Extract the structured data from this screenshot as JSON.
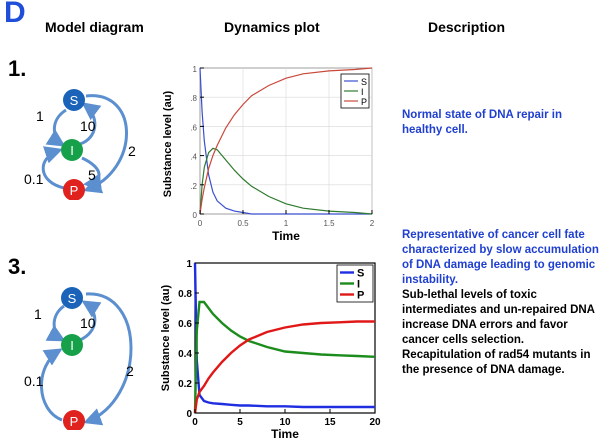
{
  "panel_letter": "D",
  "headers": {
    "model": "Model diagram",
    "dynamics": "Dynamics plot",
    "description": "Description"
  },
  "rows": [
    {
      "number": "1.",
      "diagram": {
        "nodes": [
          "S",
          "I",
          "P"
        ],
        "edge_labels": {
          "s_i": "1",
          "i_s": "10",
          "s_p": "2",
          "i_p": "5",
          "p_i": "0.1"
        }
      },
      "description_blue": "Normal state of DNA repair in healthy cell.",
      "description_black": ""
    },
    {
      "number": "3.",
      "diagram": {
        "nodes": [
          "S",
          "I",
          "P"
        ],
        "edge_labels": {
          "s_i": "1",
          "i_s": "10",
          "s_p": "2",
          "p_i": "0.1"
        }
      },
      "description_blue": "Representative of cancer cell fate characterized by slow accumulation of DNA damage leading to genomic instability.",
      "description_black": "Sub-lethal levels of toxic intermediates and un-repaired DNA increase DNA errors and favor cancer cells selection. Recapitulation of rad54 mutants in the presence of DNA damage."
    }
  ],
  "colors": {
    "S": "#1a63b8",
    "I": "#17a04a",
    "P": "#e0221f",
    "arrow": "#5b8fcf",
    "heading_blue": "#1f4fd8"
  },
  "chart_data": [
    {
      "type": "line",
      "xlabel": "Time",
      "ylabel": "Substance level (au)",
      "xlim": [
        0,
        2
      ],
      "ylim": [
        0,
        1
      ],
      "xticks": [
        "0",
        "0.5",
        "1",
        "1.5",
        "2"
      ],
      "yticks": [
        "0",
        ".2",
        ".4",
        ".6",
        ".8",
        "1"
      ],
      "x": [
        0,
        0.025,
        0.05,
        0.1,
        0.15,
        0.2,
        0.3,
        0.4,
        0.5,
        0.6,
        0.8,
        1.0,
        1.2,
        1.5,
        1.8,
        2.0
      ],
      "series": [
        {
          "name": "S",
          "color": "#3a4fcf",
          "values": [
            1.0,
            0.7,
            0.5,
            0.27,
            0.15,
            0.09,
            0.04,
            0.02,
            0.01,
            0.0,
            0.0,
            0.0,
            0.0,
            0.0,
            0.0,
            0.0
          ]
        },
        {
          "name": "I",
          "color": "#2e7a2e",
          "values": [
            0.0,
            0.2,
            0.32,
            0.42,
            0.45,
            0.44,
            0.37,
            0.3,
            0.24,
            0.19,
            0.12,
            0.07,
            0.04,
            0.02,
            0.01,
            0.0
          ]
        },
        {
          "name": "P",
          "color": "#c9483a",
          "values": [
            0.0,
            0.1,
            0.18,
            0.31,
            0.4,
            0.47,
            0.59,
            0.68,
            0.75,
            0.81,
            0.88,
            0.93,
            0.96,
            0.98,
            0.99,
            1.0
          ]
        }
      ],
      "legend": "top-right"
    },
    {
      "type": "line",
      "xlabel": "Time",
      "ylabel": "Substance level (au)",
      "xlim": [
        0,
        20
      ],
      "ylim": [
        0,
        1
      ],
      "xticks": [
        "0",
        "5",
        "10",
        "15",
        "20"
      ],
      "yticks": [
        "0",
        "0.2",
        "0.4",
        "0.6",
        "0.8",
        "1"
      ],
      "x": [
        0,
        0.2,
        0.5,
        1,
        1.5,
        2,
        3,
        4,
        5,
        6,
        8,
        10,
        12,
        14,
        16,
        18,
        20
      ],
      "series": [
        {
          "name": "S",
          "color": "#1f2ee0",
          "values": [
            1.0,
            0.35,
            0.12,
            0.08,
            0.07,
            0.065,
            0.06,
            0.055,
            0.05,
            0.05,
            0.045,
            0.045,
            0.04,
            0.04,
            0.04,
            0.04,
            0.04
          ]
        },
        {
          "name": "I",
          "color": "#1c8c1c",
          "values": [
            0.0,
            0.55,
            0.74,
            0.74,
            0.7,
            0.66,
            0.6,
            0.55,
            0.51,
            0.48,
            0.44,
            0.41,
            0.4,
            0.39,
            0.385,
            0.38,
            0.375
          ]
        },
        {
          "name": "P",
          "color": "#e01818",
          "values": [
            0.0,
            0.09,
            0.14,
            0.18,
            0.23,
            0.27,
            0.34,
            0.4,
            0.45,
            0.49,
            0.54,
            0.57,
            0.59,
            0.6,
            0.605,
            0.61,
            0.61
          ]
        }
      ],
      "legend": "top-right"
    }
  ]
}
